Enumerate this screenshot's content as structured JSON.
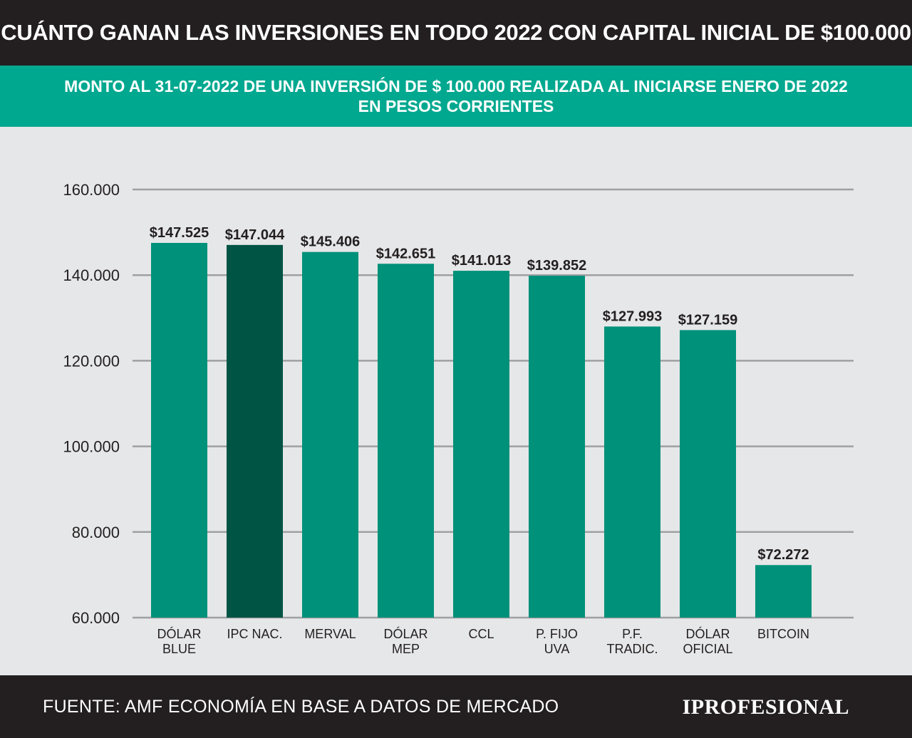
{
  "header": {
    "title": "CUÁNTO GANAN LAS INVERSIONES EN TODO 2022 CON CAPITAL INICIAL DE $100.000"
  },
  "subheader": {
    "line1": "MONTO AL 31-07-2022 DE UNA INVERSIÓN DE $ 100.000 REALIZADA AL INICIARSE ENERO DE 2022",
    "line2": "EN PESOS CORRIENTES"
  },
  "footer": {
    "source": "FUENTE: AMF ECONOMÍA EN BASE A DATOS DE MERCADO",
    "brand": "IPROFESIONAL"
  },
  "colors": {
    "bar": "#00917a",
    "highlight_bar": "#005444",
    "grid": "#9ea0a3",
    "text": "#231f20"
  },
  "chart_data": {
    "type": "bar",
    "categories": [
      [
        "DÓLAR",
        "BLUE"
      ],
      [
        "IPC  NAC."
      ],
      [
        "MERVAL"
      ],
      [
        "DÓLAR",
        "MEP"
      ],
      [
        "CCL"
      ],
      [
        "P. FIJO",
        "UVA"
      ],
      [
        "P.F.",
        "TRADIC."
      ],
      [
        "DÓLAR",
        "OFICIAL"
      ],
      [
        "BITCOIN"
      ]
    ],
    "values": [
      147525,
      147044,
      145406,
      142651,
      141013,
      139852,
      127993,
      127159,
      72272
    ],
    "value_labels": [
      "$147.525",
      "$147.044",
      "$145.406",
      "$142.651",
      "$141.013",
      "$139.852",
      "$127.993",
      "$127.159",
      "$72.272"
    ],
    "highlight_index": 1,
    "ylim": [
      60000,
      160000
    ],
    "yticks": [
      60000,
      80000,
      100000,
      120000,
      140000,
      160000
    ],
    "ytick_labels": [
      "60.000",
      "80.000",
      "100.000",
      "120.000",
      "140.000",
      "160.000"
    ],
    "grid": true
  }
}
